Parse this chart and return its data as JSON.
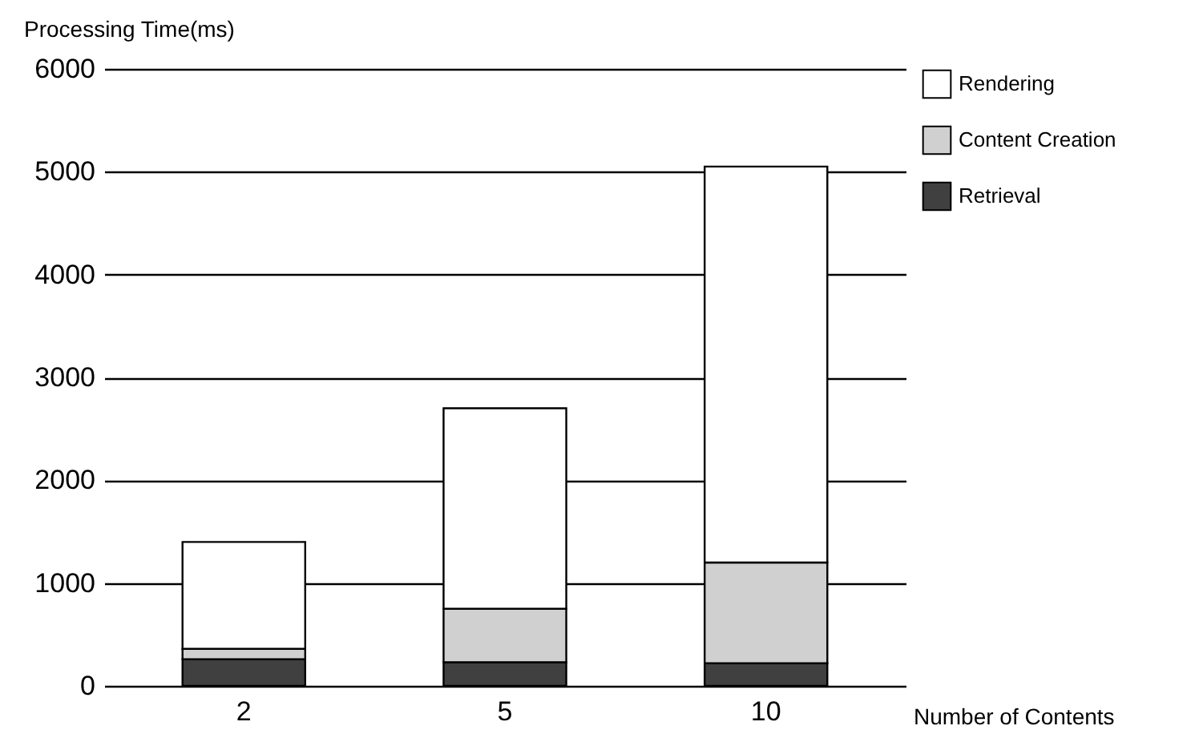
{
  "chart_data": {
    "type": "bar",
    "stacked": true,
    "xlabel": "Number of Contents",
    "ylabel": "Processing Time(ms)",
    "categories": [
      "2",
      "5",
      "10"
    ],
    "series": [
      {
        "name": "Retrieval",
        "color": "#404040",
        "values": [
          260,
          230,
          220
        ]
      },
      {
        "name": "Content Creation",
        "color": "#d0d0d0",
        "values": [
          100,
          520,
          980
        ]
      },
      {
        "name": "Rendering",
        "color": "#ffffff",
        "values": [
          1040,
          1950,
          3850
        ]
      }
    ],
    "ylim": [
      0,
      6000
    ],
    "yticks": [
      0,
      1000,
      2000,
      3000,
      4000,
      5000,
      6000
    ],
    "grid": "y",
    "legend": "right"
  }
}
